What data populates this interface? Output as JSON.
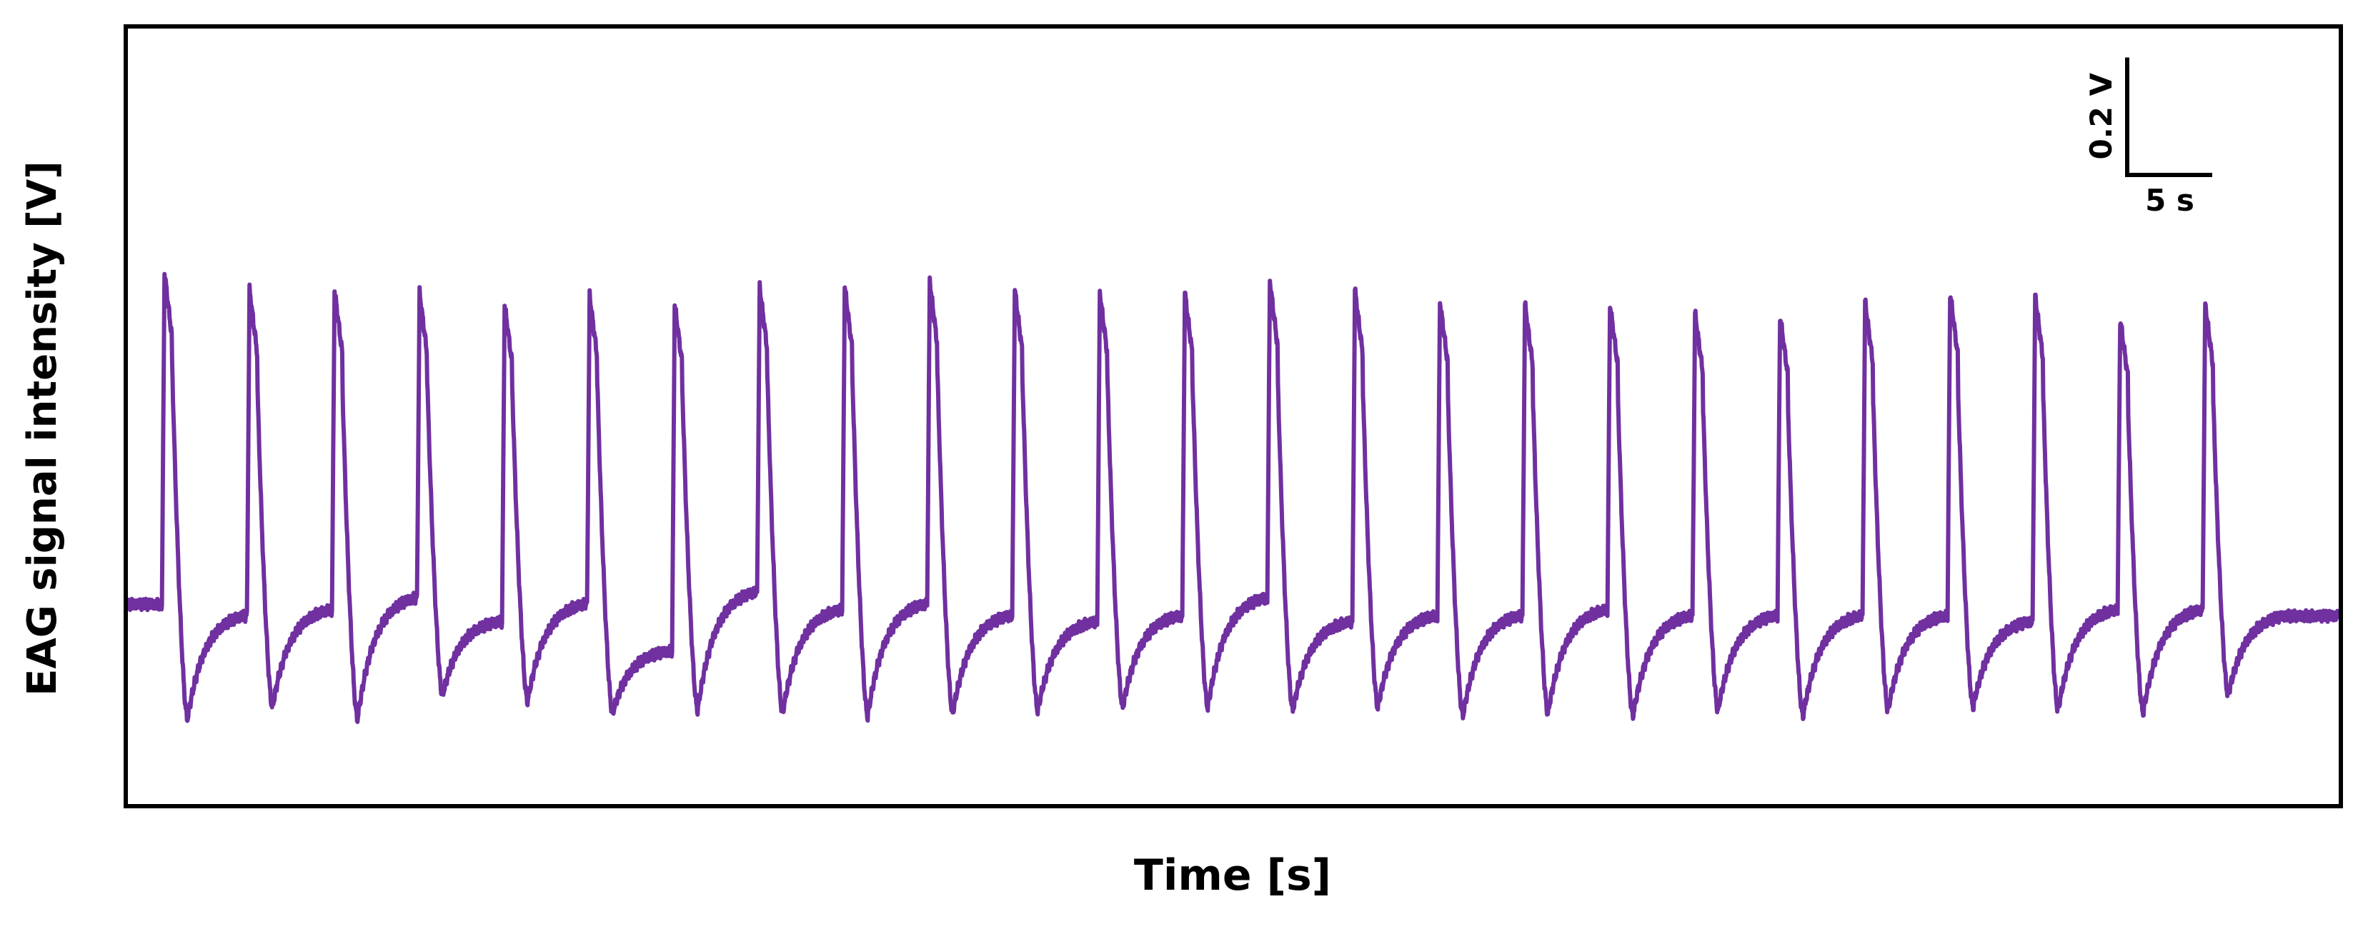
{
  "colors": {
    "trace": "#7030a0",
    "frame": "#000000",
    "background": "#ffffff"
  },
  "chart_data": {
    "type": "line",
    "title": "",
    "xlabel": "Time [s]",
    "ylabel": "EAG signal intensity [V]",
    "x_unit": "s",
    "y_unit": "V",
    "xlim": [
      0,
      130
    ],
    "ylim": [
      -0.34,
      0.98
    ],
    "grid": false,
    "legend": "none",
    "ticks_shown": false,
    "scale_bar": {
      "x_value": 5,
      "x_label": "5 s",
      "y_value": 0.2,
      "y_label": "0.2 V",
      "placement": "top-right"
    },
    "series": [
      {
        "baseline": 0.0,
        "pulse_times": [
          2.0,
          7.0,
          12.0,
          17.0,
          22.0,
          27.0,
          32.0,
          37.0,
          42.0,
          47.0,
          52.0,
          57.0,
          62.0,
          67.0,
          72.0,
          77.0,
          82.0,
          87.0,
          92.0,
          97.0,
          102.0,
          107.0,
          112.0,
          117.0,
          122.0
        ],
        "peak_values": [
          0.565,
          0.535,
          0.535,
          0.53,
          0.51,
          0.525,
          0.51,
          0.54,
          0.54,
          0.55,
          0.535,
          0.53,
          0.53,
          0.55,
          0.535,
          0.515,
          0.51,
          0.51,
          0.495,
          0.49,
          0.515,
          0.53,
          0.525,
          0.485,
          0.51
        ],
        "trough_values": [
          -0.195,
          -0.175,
          -0.195,
          -0.155,
          -0.165,
          -0.185,
          -0.18,
          -0.185,
          -0.19,
          -0.185,
          -0.18,
          -0.175,
          -0.175,
          -0.18,
          -0.175,
          -0.19,
          -0.185,
          -0.19,
          -0.18,
          -0.19,
          -0.18,
          -0.175,
          -0.18,
          -0.185,
          -0.155
        ],
        "pre_pulse_values": [
          0.0,
          -0.02,
          -0.01,
          0.01,
          -0.03,
          0.0,
          -0.08,
          0.02,
          -0.01,
          0.0,
          -0.02,
          -0.03,
          -0.02,
          0.01,
          -0.03,
          -0.02,
          -0.02,
          -0.01,
          -0.02,
          -0.02,
          -0.02,
          -0.02,
          -0.03,
          -0.01,
          -0.01
        ],
        "end_value": -0.02
      }
    ]
  }
}
